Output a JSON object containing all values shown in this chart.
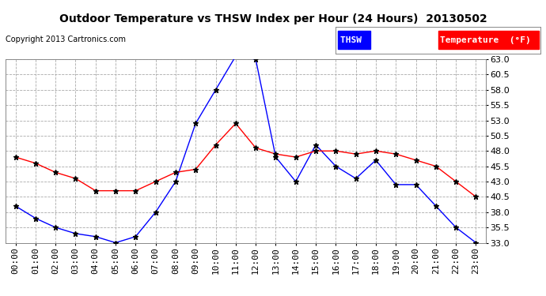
{
  "title": "Outdoor Temperature vs THSW Index per Hour (24 Hours)  20130502",
  "copyright": "Copyright 2013 Cartronics.com",
  "thsw_label": "THSW  (°F)",
  "temp_label": "Temperature  (°F)",
  "hours": [
    "00:00",
    "01:00",
    "02:00",
    "03:00",
    "04:00",
    "05:00",
    "06:00",
    "07:00",
    "08:00",
    "09:00",
    "10:00",
    "11:00",
    "12:00",
    "13:00",
    "14:00",
    "15:00",
    "16:00",
    "17:00",
    "18:00",
    "19:00",
    "20:00",
    "21:00",
    "22:00",
    "23:00"
  ],
  "thsw": [
    39.0,
    37.0,
    35.5,
    34.5,
    34.0,
    33.0,
    34.0,
    38.0,
    43.0,
    52.5,
    58.0,
    63.5,
    63.0,
    47.0,
    43.0,
    49.0,
    45.5,
    43.5,
    46.5,
    42.5,
    42.5,
    39.0,
    35.5,
    33.0
  ],
  "temperature": [
    47.0,
    46.0,
    44.5,
    43.5,
    41.5,
    41.5,
    41.5,
    43.0,
    44.5,
    45.0,
    49.0,
    52.5,
    48.5,
    47.5,
    47.0,
    48.0,
    48.0,
    47.5,
    48.0,
    47.5,
    46.5,
    45.5,
    43.0,
    40.5
  ],
  "thsw_color": "#0000ff",
  "temp_color": "#ff0000",
  "thsw_label_bg": "#0000ff",
  "temp_label_bg": "#ff0000",
  "bg_color": "#ffffff",
  "plot_bg_color": "#ffffff",
  "grid_color": "#aaaaaa",
  "title_fontsize": 10,
  "copyright_fontsize": 7,
  "tick_fontsize": 8,
  "legend_fontsize": 8,
  "ylim_min": 33.0,
  "ylim_max": 63.0,
  "yticks": [
    33.0,
    35.5,
    38.0,
    40.5,
    43.0,
    45.5,
    48.0,
    50.5,
    53.0,
    55.5,
    58.0,
    60.5,
    63.0
  ],
  "marker": "*",
  "markersize": 5,
  "linewidth": 1.0
}
